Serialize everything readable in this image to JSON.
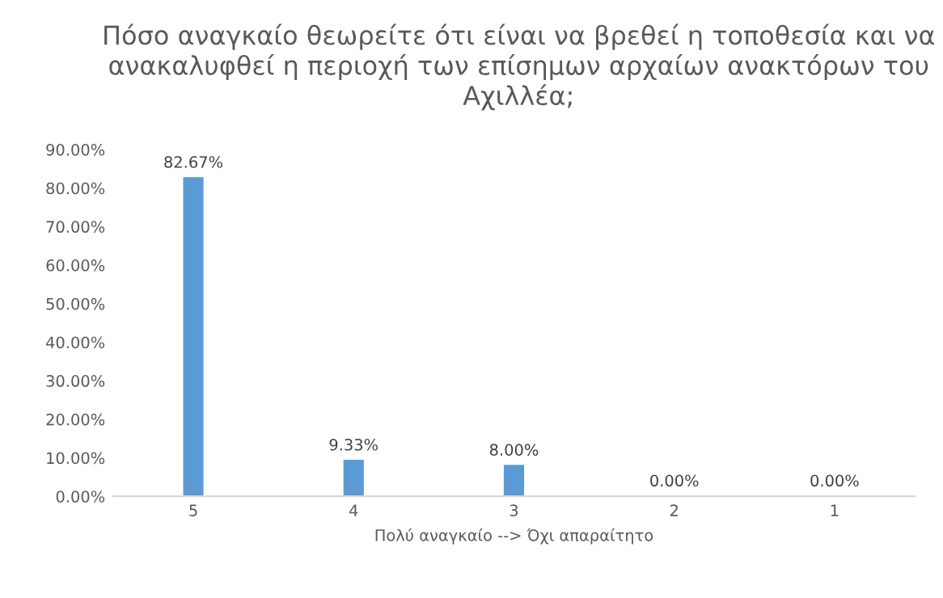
{
  "chart_data": {
    "type": "bar",
    "title": "Πόσο αναγκαίο θεωρείτε ότι είναι να βρεθεί η τοποθεσία και να ανακαλυφθεί η περιοχή των επίσημων αρχαίων ανακτόρων του Αχιλλέα;",
    "xlabel": "Πολύ αναγκαίο --> Όχι απαραίτητο",
    "categories": [
      "5",
      "4",
      "3",
      "2",
      "1"
    ],
    "values": [
      82.67,
      9.33,
      8.0,
      0.0,
      0.0
    ],
    "value_labels": [
      "82.67%",
      "9.33%",
      "8.00%",
      "0.00%",
      "0.00%"
    ],
    "color": "#5b9bd5",
    "ylim": [
      0,
      90
    ],
    "yticks": [
      {
        "value": 0,
        "label": "0.00%"
      },
      {
        "value": 10,
        "label": "10.00%"
      },
      {
        "value": 20,
        "label": "20.00%"
      },
      {
        "value": 30,
        "label": "30.00%"
      },
      {
        "value": 40,
        "label": "40.00%"
      },
      {
        "value": 50,
        "label": "50.00%"
      },
      {
        "value": 60,
        "label": "60.00%"
      },
      {
        "value": 70,
        "label": "70.00%"
      },
      {
        "value": 80,
        "label": "80.00%"
      },
      {
        "value": 90,
        "label": "90.00%"
      }
    ],
    "grid": false,
    "legend": false
  }
}
